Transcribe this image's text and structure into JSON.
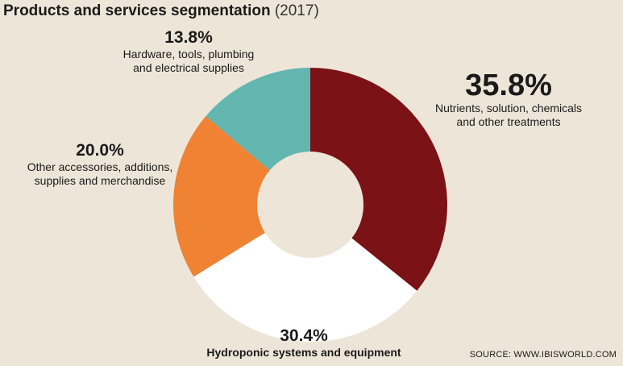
{
  "header": {
    "title": "Products and services segmentation",
    "year": "(2017)"
  },
  "source": "SOURCE: WWW.IBISWORLD.COM",
  "chart_data": {
    "type": "pie",
    "donut": true,
    "title": "Products and services segmentation (2017)",
    "segments": [
      {
        "label": "Nutrients, solution, chemicals and other treatments",
        "value": 35.8,
        "display": "35.8%",
        "color": "#7b1216"
      },
      {
        "label": "Hydroponic systems and equipment",
        "value": 30.4,
        "display": "30.4%",
        "color": "#ffffff"
      },
      {
        "label": "Other accessories, additions, supplies and merchandise",
        "value": 20.0,
        "display": "20.0%",
        "color": "#ef8233"
      },
      {
        "label": "Hardware, tools, plumbing and electrical supplies",
        "value": 13.8,
        "display": "13.8%",
        "color": "#63b6b0"
      }
    ]
  }
}
